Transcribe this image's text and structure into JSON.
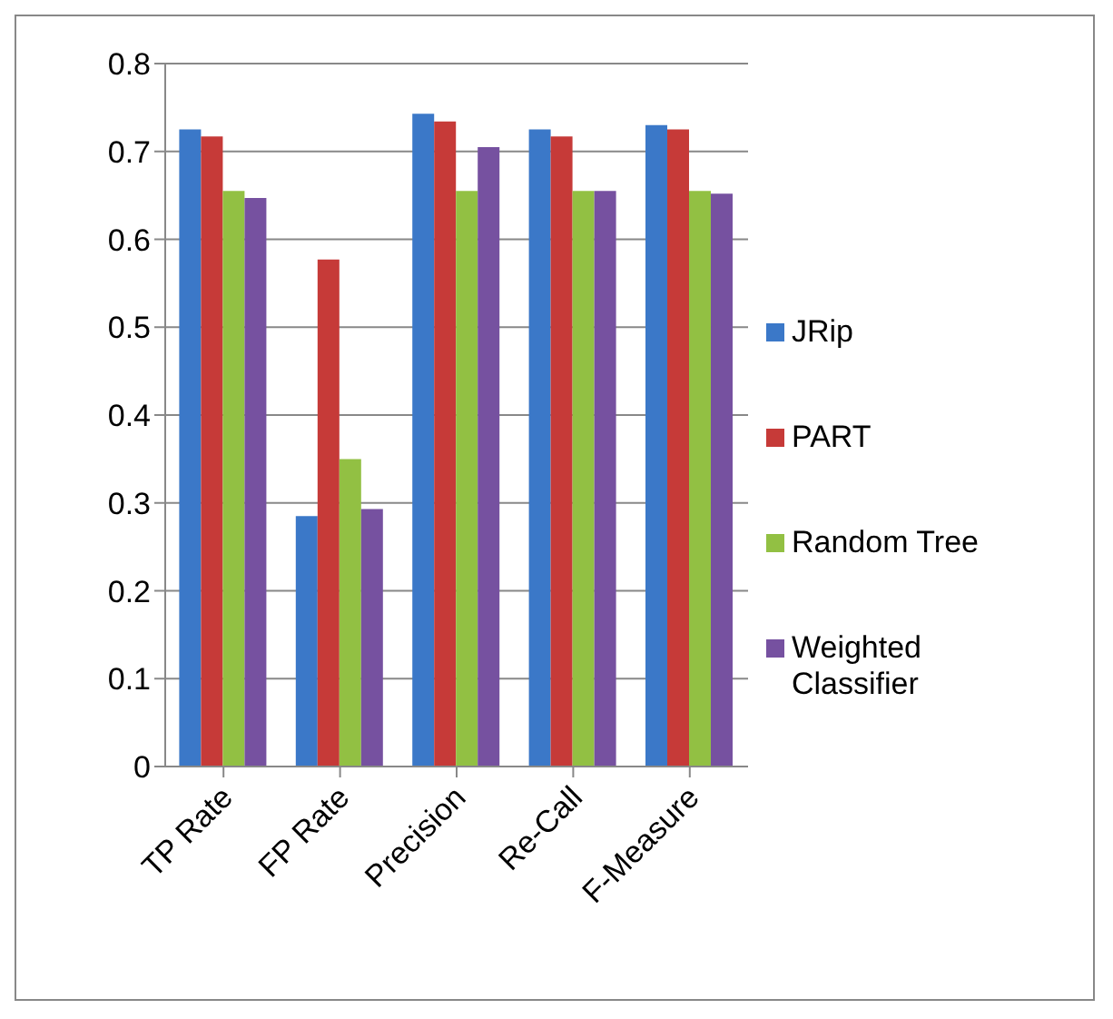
{
  "chart_data": {
    "type": "bar",
    "categories": [
      "TP Rate",
      "FP Rate",
      "Precision",
      "Re-Call",
      "F-Measure"
    ],
    "series": [
      {
        "name": "JRip",
        "color": "#3b78c8",
        "values": [
          0.725,
          0.285,
          0.743,
          0.725,
          0.73
        ]
      },
      {
        "name": "PART",
        "color": "#c63a38",
        "values": [
          0.717,
          0.577,
          0.734,
          0.717,
          0.725
        ]
      },
      {
        "name": "Random Tree",
        "color": "#92c043",
        "values": [
          0.655,
          0.35,
          0.655,
          0.655,
          0.655
        ]
      },
      {
        "name": "Weighted Classifier",
        "color": "#7651a0",
        "values": [
          0.647,
          0.293,
          0.705,
          0.655,
          0.652
        ]
      }
    ],
    "ylim": [
      0,
      0.8
    ],
    "yticks": [
      0,
      0.1,
      0.2,
      0.3,
      0.4,
      0.5,
      0.6,
      0.7,
      0.8
    ],
    "grid": "y",
    "legend": "right"
  }
}
